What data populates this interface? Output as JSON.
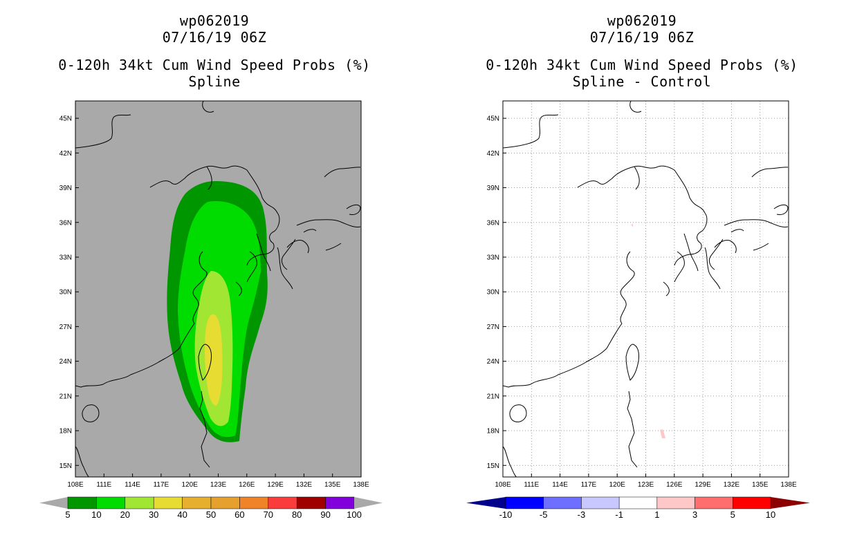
{
  "chart_data": [
    {
      "type": "heatmap",
      "title_lines": [
        "wp062019",
        "07/16/19 06Z",
        "0-120h 34kt Cum Wind Speed Probs (%)",
        "Spline"
      ],
      "background": "#a9a9a9",
      "x_ticks": [
        "108E",
        "111E",
        "114E",
        "117E",
        "120E",
        "123E",
        "126E",
        "129E",
        "132E",
        "135E",
        "138E"
      ],
      "y_ticks": [
        "15N",
        "18N",
        "21N",
        "24N",
        "27N",
        "30N",
        "33N",
        "36N",
        "39N",
        "42N",
        "45N"
      ],
      "xlim": [
        108,
        138
      ],
      "ylim": [
        14,
        46.5
      ],
      "gridlines": false,
      "colorbar": {
        "labels": [
          "5",
          "10",
          "20",
          "30",
          "40",
          "50",
          "60",
          "70",
          "80",
          "90",
          "100"
        ],
        "colors": [
          "#009600",
          "#00dc00",
          "#a0e632",
          "#e6dc32",
          "#e6af2d",
          "#e6a02d",
          "#f08228",
          "#fa3c3c",
          "#a00000",
          "#8200dc"
        ],
        "ends": [
          "#a9a9a9",
          "#a9a9a9"
        ]
      },
      "contours": [
        {
          "level": "5-10",
          "color": "#009600"
        },
        {
          "level": "10-20",
          "color": "#00dc00"
        },
        {
          "level": "20-30",
          "color": "#a0e632"
        },
        {
          "level": "30-40",
          "color": "#e6dc32"
        }
      ]
    },
    {
      "type": "heatmap",
      "title_lines": [
        "wp062019",
        "07/16/19 06Z",
        "0-120h 34kt Cum Wind Speed Probs (%)",
        "Spline - Control"
      ],
      "background": "#ffffff",
      "x_ticks": [
        "108E",
        "111E",
        "114E",
        "117E",
        "120E",
        "123E",
        "126E",
        "129E",
        "132E",
        "135E",
        "138E"
      ],
      "y_ticks": [
        "15N",
        "18N",
        "21N",
        "24N",
        "27N",
        "30N",
        "33N",
        "36N",
        "39N",
        "42N",
        "45N"
      ],
      "xlim": [
        108,
        138
      ],
      "ylim": [
        14,
        46.5
      ],
      "gridlines": true,
      "colorbar": {
        "labels": [
          "-10",
          "-5",
          "-3",
          "-1",
          "1",
          "3",
          "5",
          "10"
        ],
        "colors": [
          "#0000ff",
          "#6e6eff",
          "#c8c8ff",
          "#ffffff",
          "#ffc8c8",
          "#ff6e6e",
          "#ff0000"
        ],
        "ends": [
          "#00008c",
          "#8c0000"
        ]
      },
      "contours": [
        {
          "level": "1-3",
          "color": "#ffc8c8"
        }
      ]
    }
  ]
}
